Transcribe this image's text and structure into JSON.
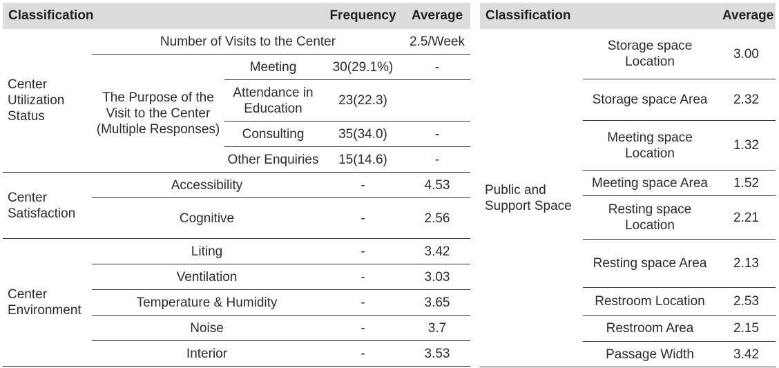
{
  "left": {
    "headers": {
      "classification": "Classification",
      "frequency": "Frequency",
      "average": "Average"
    },
    "utilization": {
      "group": "Center Utilization Status",
      "visits": {
        "label": "Number of Visits to the Center",
        "average": "2.5/Week"
      },
      "purpose_label": "The Purpose of the Visit to the Center (Multiple Responses)",
      "purposes": [
        {
          "label": "Meeting",
          "frequency": "30(29.1%)",
          "average": "-"
        },
        {
          "label": "Attendance in Education",
          "frequency": "23(22.3)",
          "average": ""
        },
        {
          "label": "Consulting",
          "frequency": "35(34.0)",
          "average": "-"
        },
        {
          "label": "Other Enquiries",
          "frequency": "15(14.6)",
          "average": "-"
        }
      ]
    },
    "satisfaction": {
      "group": "Center Satisfaction",
      "rows": [
        {
          "label": "Accessibility",
          "frequency": "-",
          "average": "4.53"
        },
        {
          "label": "Cognitive",
          "frequency": "-",
          "average": "2.56"
        }
      ]
    },
    "environment": {
      "group": "Center Environment",
      "rows": [
        {
          "label": "Liting",
          "frequency": "-",
          "average": "3.42"
        },
        {
          "label": "Ventilation",
          "frequency": "-",
          "average": "3.03"
        },
        {
          "label": "Temperature & Humidity",
          "frequency": "-",
          "average": "3.65"
        },
        {
          "label": "Noise",
          "frequency": "-",
          "average": "3.7"
        },
        {
          "label": "Interior",
          "frequency": "-",
          "average": "3.53"
        }
      ]
    }
  },
  "right": {
    "headers": {
      "classification": "Classification",
      "average": "Average"
    },
    "group": "Public and Support Space",
    "rows": [
      {
        "label": "Storage space Location",
        "average": "3.00"
      },
      {
        "label": "Storage space Area",
        "average": "2.32"
      },
      {
        "label": "Meeting space Location",
        "average": "1.32"
      },
      {
        "label": "Meeting space Area",
        "average": "1.52"
      },
      {
        "label": "Resting space Location",
        "average": "2.21"
      },
      {
        "label": "Resting space Area",
        "average": "2.13"
      },
      {
        "label": "Restroom Location",
        "average": "2.53"
      },
      {
        "label": "Restroom Area",
        "average": "2.15"
      },
      {
        "label": "Passage Width",
        "average": "3.42"
      }
    ]
  }
}
